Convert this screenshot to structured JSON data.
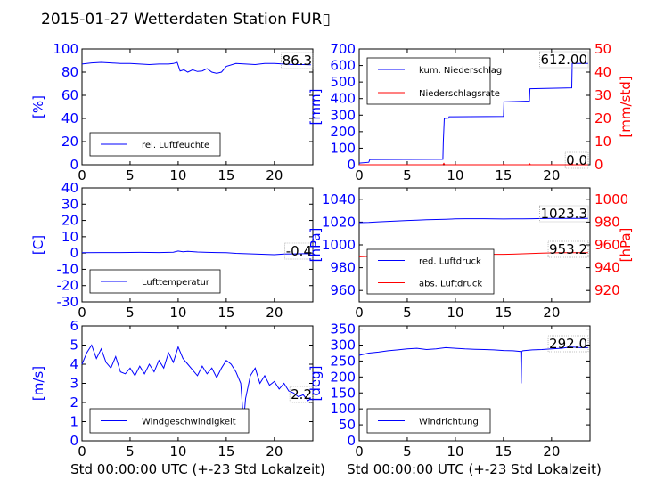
{
  "title": "2015-01-27 Wetterdaten Station FUR▯",
  "colors": {
    "primary": "#0000ff",
    "secondary": "#ff0000",
    "axis": "#000000"
  },
  "xlabel": "Std 00:00:00 UTC (+-23 Std Lokalzeit)",
  "chart_data": [
    {
      "type": "line",
      "ylabel": "[%]",
      "xlim": [
        0,
        24
      ],
      "ylim": [
        0,
        100
      ],
      "xticks": [
        0,
        5,
        10,
        15,
        20
      ],
      "yticks": [
        0,
        20,
        40,
        60,
        80,
        100
      ],
      "legend": "lower-left",
      "annotation": "86.3",
      "series": [
        {
          "name": "rel. Luftfeuchte",
          "axis": "left",
          "color": "#0000ff",
          "x": [
            0,
            1,
            2,
            3,
            4,
            5,
            6,
            7,
            8,
            9,
            9.5,
            9.9,
            10.2,
            10.6,
            11,
            11.5,
            12,
            12.5,
            13,
            13.5,
            14,
            14.5,
            15,
            16,
            17,
            18,
            19,
            20,
            21,
            22,
            23,
            23.8
          ],
          "y": [
            87,
            88,
            88.5,
            88,
            87.5,
            87.5,
            87,
            86.5,
            87,
            87,
            87.5,
            88.5,
            81,
            82,
            80,
            82,
            80.5,
            81,
            83,
            80,
            79,
            80,
            85,
            87.5,
            87,
            86.5,
            87.5,
            87.5,
            87,
            86.5,
            86.5,
            86.3
          ]
        }
      ]
    },
    {
      "type": "line",
      "ylabel": "[mm]",
      "y2label": "[mm/std]",
      "xlim": [
        0,
        24
      ],
      "ylim": [
        0,
        700
      ],
      "y2lim": [
        0,
        50
      ],
      "xticks": [
        0,
        5,
        10,
        15,
        20
      ],
      "yticks": [
        0,
        100,
        200,
        300,
        400,
        500,
        600,
        700
      ],
      "y2ticks": [
        0,
        10,
        20,
        30,
        40,
        50
      ],
      "legend": "top-left",
      "annotation": "612.00",
      "annotation2": "0.0",
      "series": [
        {
          "name": "kum. Niederschlag",
          "axis": "left",
          "color": "#0000ff",
          "x": [
            0,
            1,
            1.1,
            8.7,
            8.75,
            8.85,
            9.3,
            9.35,
            15,
            15.05,
            17.7,
            17.75,
            22.1,
            22.15,
            23.8
          ],
          "y": [
            10,
            15,
            32,
            33,
            140,
            280,
            282,
            290,
            292,
            380,
            385,
            460,
            465,
            612,
            612
          ]
        },
        {
          "name": "Niederschlagsrate",
          "axis": "right",
          "color": "#ff0000",
          "x": [
            0,
            8.7,
            8.8,
            8.9,
            15,
            15.05,
            15.1,
            17.7,
            17.75,
            17.8,
            22.1,
            22.15,
            22.2,
            23.8
          ],
          "y": [
            0,
            0,
            0.6,
            0,
            0,
            0.5,
            0,
            0,
            0.4,
            0,
            0,
            0.8,
            0,
            0
          ]
        }
      ]
    },
    {
      "type": "line",
      "ylabel": "[C]",
      "xlim": [
        0,
        24
      ],
      "ylim": [
        -30,
        40
      ],
      "xticks": [
        0,
        5,
        10,
        15,
        20
      ],
      "yticks": [
        -30,
        -20,
        -10,
        0,
        10,
        20,
        30,
        40
      ],
      "legend": "lower-left",
      "annotation": "-0.4",
      "series": [
        {
          "name": "Lufttemperatur",
          "axis": "left",
          "color": "#0000ff",
          "x": [
            0,
            2,
            4,
            6,
            8,
            9.5,
            10,
            10.5,
            11,
            12,
            13,
            14,
            15,
            16,
            17,
            18,
            19,
            20,
            21,
            22,
            23,
            23.8
          ],
          "y": [
            0.2,
            0.3,
            0.3,
            0.4,
            0.3,
            0.5,
            1.2,
            0.8,
            1.0,
            0.6,
            0.4,
            0.3,
            0.2,
            -0.2,
            -0.4,
            -0.6,
            -0.8,
            -1.0,
            -0.6,
            -0.5,
            -0.4,
            -0.4
          ]
        }
      ]
    },
    {
      "type": "line",
      "ylabel": "[hPa]",
      "y2label": "[hPa]",
      "xlim": [
        0,
        24
      ],
      "ylim": [
        950,
        1050
      ],
      "y2lim": [
        910,
        1010
      ],
      "xticks": [
        0,
        5,
        10,
        15,
        20
      ],
      "yticks": [
        960,
        980,
        1000,
        1020,
        1040
      ],
      "y2ticks": [
        920,
        940,
        960,
        980,
        1000
      ],
      "legend": "lower-left",
      "annotation": "1023.3",
      "annotation2": "953.2",
      "series": [
        {
          "name": "red. Luftdruck",
          "axis": "left",
          "color": "#0000ff",
          "x": [
            0,
            1,
            2,
            3,
            4,
            5,
            6,
            7,
            8,
            9,
            10,
            11,
            12,
            13,
            14,
            15,
            16,
            17,
            18,
            19,
            20,
            21,
            22,
            23,
            23.8
          ],
          "y": [
            1019.5,
            1019.8,
            1020.2,
            1020.6,
            1021,
            1021.4,
            1021.7,
            1022,
            1022.3,
            1022.5,
            1022.8,
            1023,
            1023,
            1023,
            1022.8,
            1022.7,
            1022.8,
            1022.9,
            1023,
            1023.1,
            1023.2,
            1023.2,
            1023.3,
            1023.3,
            1023.3
          ]
        },
        {
          "name": "abs. Luftdruck",
          "axis": "right",
          "color": "#ff0000",
          "x": [
            0,
            1,
            2,
            3,
            4,
            5,
            6,
            7,
            8,
            9,
            10,
            11,
            12,
            13,
            14,
            15,
            16,
            17,
            18,
            19,
            20,
            21,
            22,
            23,
            23.8
          ],
          "y": [
            949.5,
            949.9,
            950.3,
            950.7,
            951,
            951.3,
            951.6,
            951.8,
            952,
            952.1,
            952.2,
            952.2,
            952,
            951.8,
            951.7,
            951.7,
            951.9,
            952.2,
            952.5,
            952.8,
            953,
            953.1,
            953.2,
            953.2,
            953.2
          ]
        }
      ]
    },
    {
      "type": "line",
      "ylabel": "[m/s]",
      "xlim": [
        0,
        24
      ],
      "ylim": [
        0,
        6
      ],
      "xticks": [
        0,
        5,
        10,
        15,
        20
      ],
      "yticks": [
        0,
        1,
        2,
        3,
        4,
        5,
        6
      ],
      "legend": "lower-left",
      "annotation": "2.2",
      "series": [
        {
          "name": "Windgeschwindigkeit",
          "axis": "left",
          "color": "#0000ff",
          "x": [
            0,
            0.5,
            1,
            1.5,
            2,
            2.5,
            3,
            3.5,
            4,
            4.5,
            5,
            5.5,
            6,
            6.5,
            7,
            7.5,
            8,
            8.5,
            9,
            9.5,
            10,
            10.5,
            11,
            11.5,
            12,
            12.5,
            13,
            13.5,
            14,
            14.5,
            15,
            15.5,
            16,
            16.5,
            16.8,
            17,
            17.5,
            18,
            18.5,
            19,
            19.5,
            20,
            20.5,
            21,
            21.5,
            22,
            22.5,
            23,
            23.5,
            23.8
          ],
          "y": [
            4.0,
            4.6,
            5.0,
            4.3,
            4.8,
            4.1,
            3.8,
            4.4,
            3.6,
            3.5,
            3.8,
            3.4,
            3.9,
            3.5,
            4.0,
            3.6,
            4.2,
            3.8,
            4.6,
            4.1,
            4.9,
            4.3,
            4.0,
            3.7,
            3.4,
            3.9,
            3.5,
            3.8,
            3.3,
            3.8,
            4.2,
            4.0,
            3.6,
            3.0,
            1.0,
            2.2,
            3.4,
            3.8,
            3.0,
            3.4,
            2.9,
            3.1,
            2.7,
            3.0,
            2.6,
            2.5,
            2.3,
            2.4,
            2.1,
            2.2
          ]
        }
      ]
    },
    {
      "type": "line",
      "ylabel": "[deg]",
      "xlim": [
        0,
        24
      ],
      "ylim": [
        0,
        360
      ],
      "xticks": [
        0,
        5,
        10,
        15,
        20
      ],
      "yticks": [
        0,
        50,
        100,
        150,
        200,
        250,
        300,
        350
      ],
      "legend": "lower-left",
      "annotation": "292.0",
      "series": [
        {
          "name": "Windrichtung",
          "axis": "left",
          "color": "#0000ff",
          "x": [
            0,
            1,
            2,
            3,
            4,
            5,
            6,
            7,
            8,
            9,
            10,
            11,
            12,
            13,
            14,
            15,
            16,
            16.8,
            16.85,
            16.9,
            17,
            18,
            19,
            20,
            21,
            22,
            23,
            23.8
          ],
          "y": [
            268,
            275,
            278,
            282,
            285,
            288,
            290,
            286,
            288,
            292,
            290,
            288,
            287,
            286,
            285,
            283,
            282,
            280,
            180,
            280,
            282,
            285,
            286,
            288,
            290,
            294,
            292,
            292
          ]
        }
      ]
    }
  ]
}
